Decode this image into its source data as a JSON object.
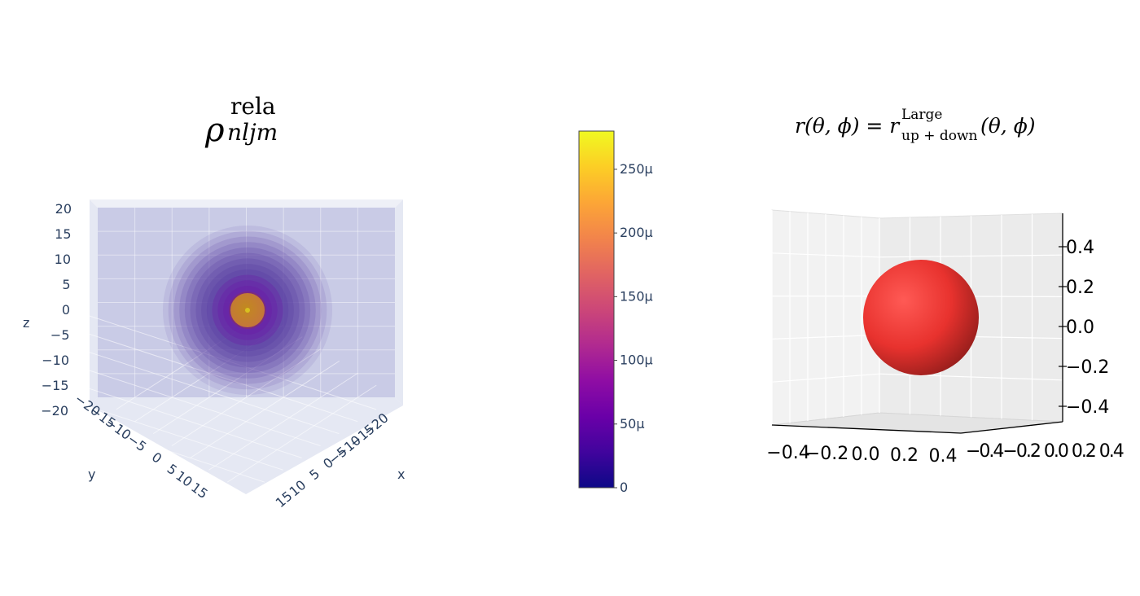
{
  "chart_data": [
    {
      "type": "scatter",
      "render": "3d-volume",
      "title_base": "ρ",
      "title_sub": "nljm",
      "title_sup": "rela",
      "xlabel": "x",
      "ylabel": "y",
      "zlabel": "z",
      "xlim": [
        -20,
        20
      ],
      "ylim": [
        -20,
        20
      ],
      "zlim": [
        -20,
        20
      ],
      "x_ticks": [
        "−20",
        "−15",
        "−10",
        "−5",
        "0",
        "5",
        "10",
        "15"
      ],
      "y_ticks": [
        "−20",
        "−15",
        "−10",
        "−5",
        "0",
        "5",
        "10",
        "15"
      ],
      "z_ticks": [
        "20",
        "15",
        "10",
        "5",
        "0",
        "−5",
        "−10",
        "−15",
        "−20"
      ],
      "isosurface_levels": 12,
      "grid": true,
      "colorscale": "plasma",
      "colorbar": {
        "range": [
          0,
          0.00028
        ],
        "tick_values": [
          0,
          5e-05,
          0.0001,
          0.00015,
          0.0002,
          0.00025
        ],
        "tick_labels": [
          "0",
          "50μ",
          "100μ",
          "150μ",
          "200μ",
          "250μ"
        ]
      }
    },
    {
      "type": "scatter",
      "render": "3d-surface",
      "title_lhs": "r(θ, ϕ) = r",
      "title_sup": "Large",
      "title_sub": "up + down",
      "title_rhs": "(θ, ϕ)",
      "radius": 0.25,
      "color": "#e8322e",
      "xlim": [
        -0.5,
        0.5
      ],
      "ylim": [
        -0.5,
        0.5
      ],
      "zlim": [
        -0.5,
        0.5
      ],
      "x_ticks": [
        "−0.4",
        "−0.2",
        "0.0",
        "0.2",
        "0.4"
      ],
      "y_ticks_overlapping": "−0.4−0.2 0.0 0.2 0.4",
      "z_ticks": [
        "0.4",
        "0.2",
        "0.0",
        "−0.2",
        "−0.4"
      ],
      "grid": true
    }
  ]
}
